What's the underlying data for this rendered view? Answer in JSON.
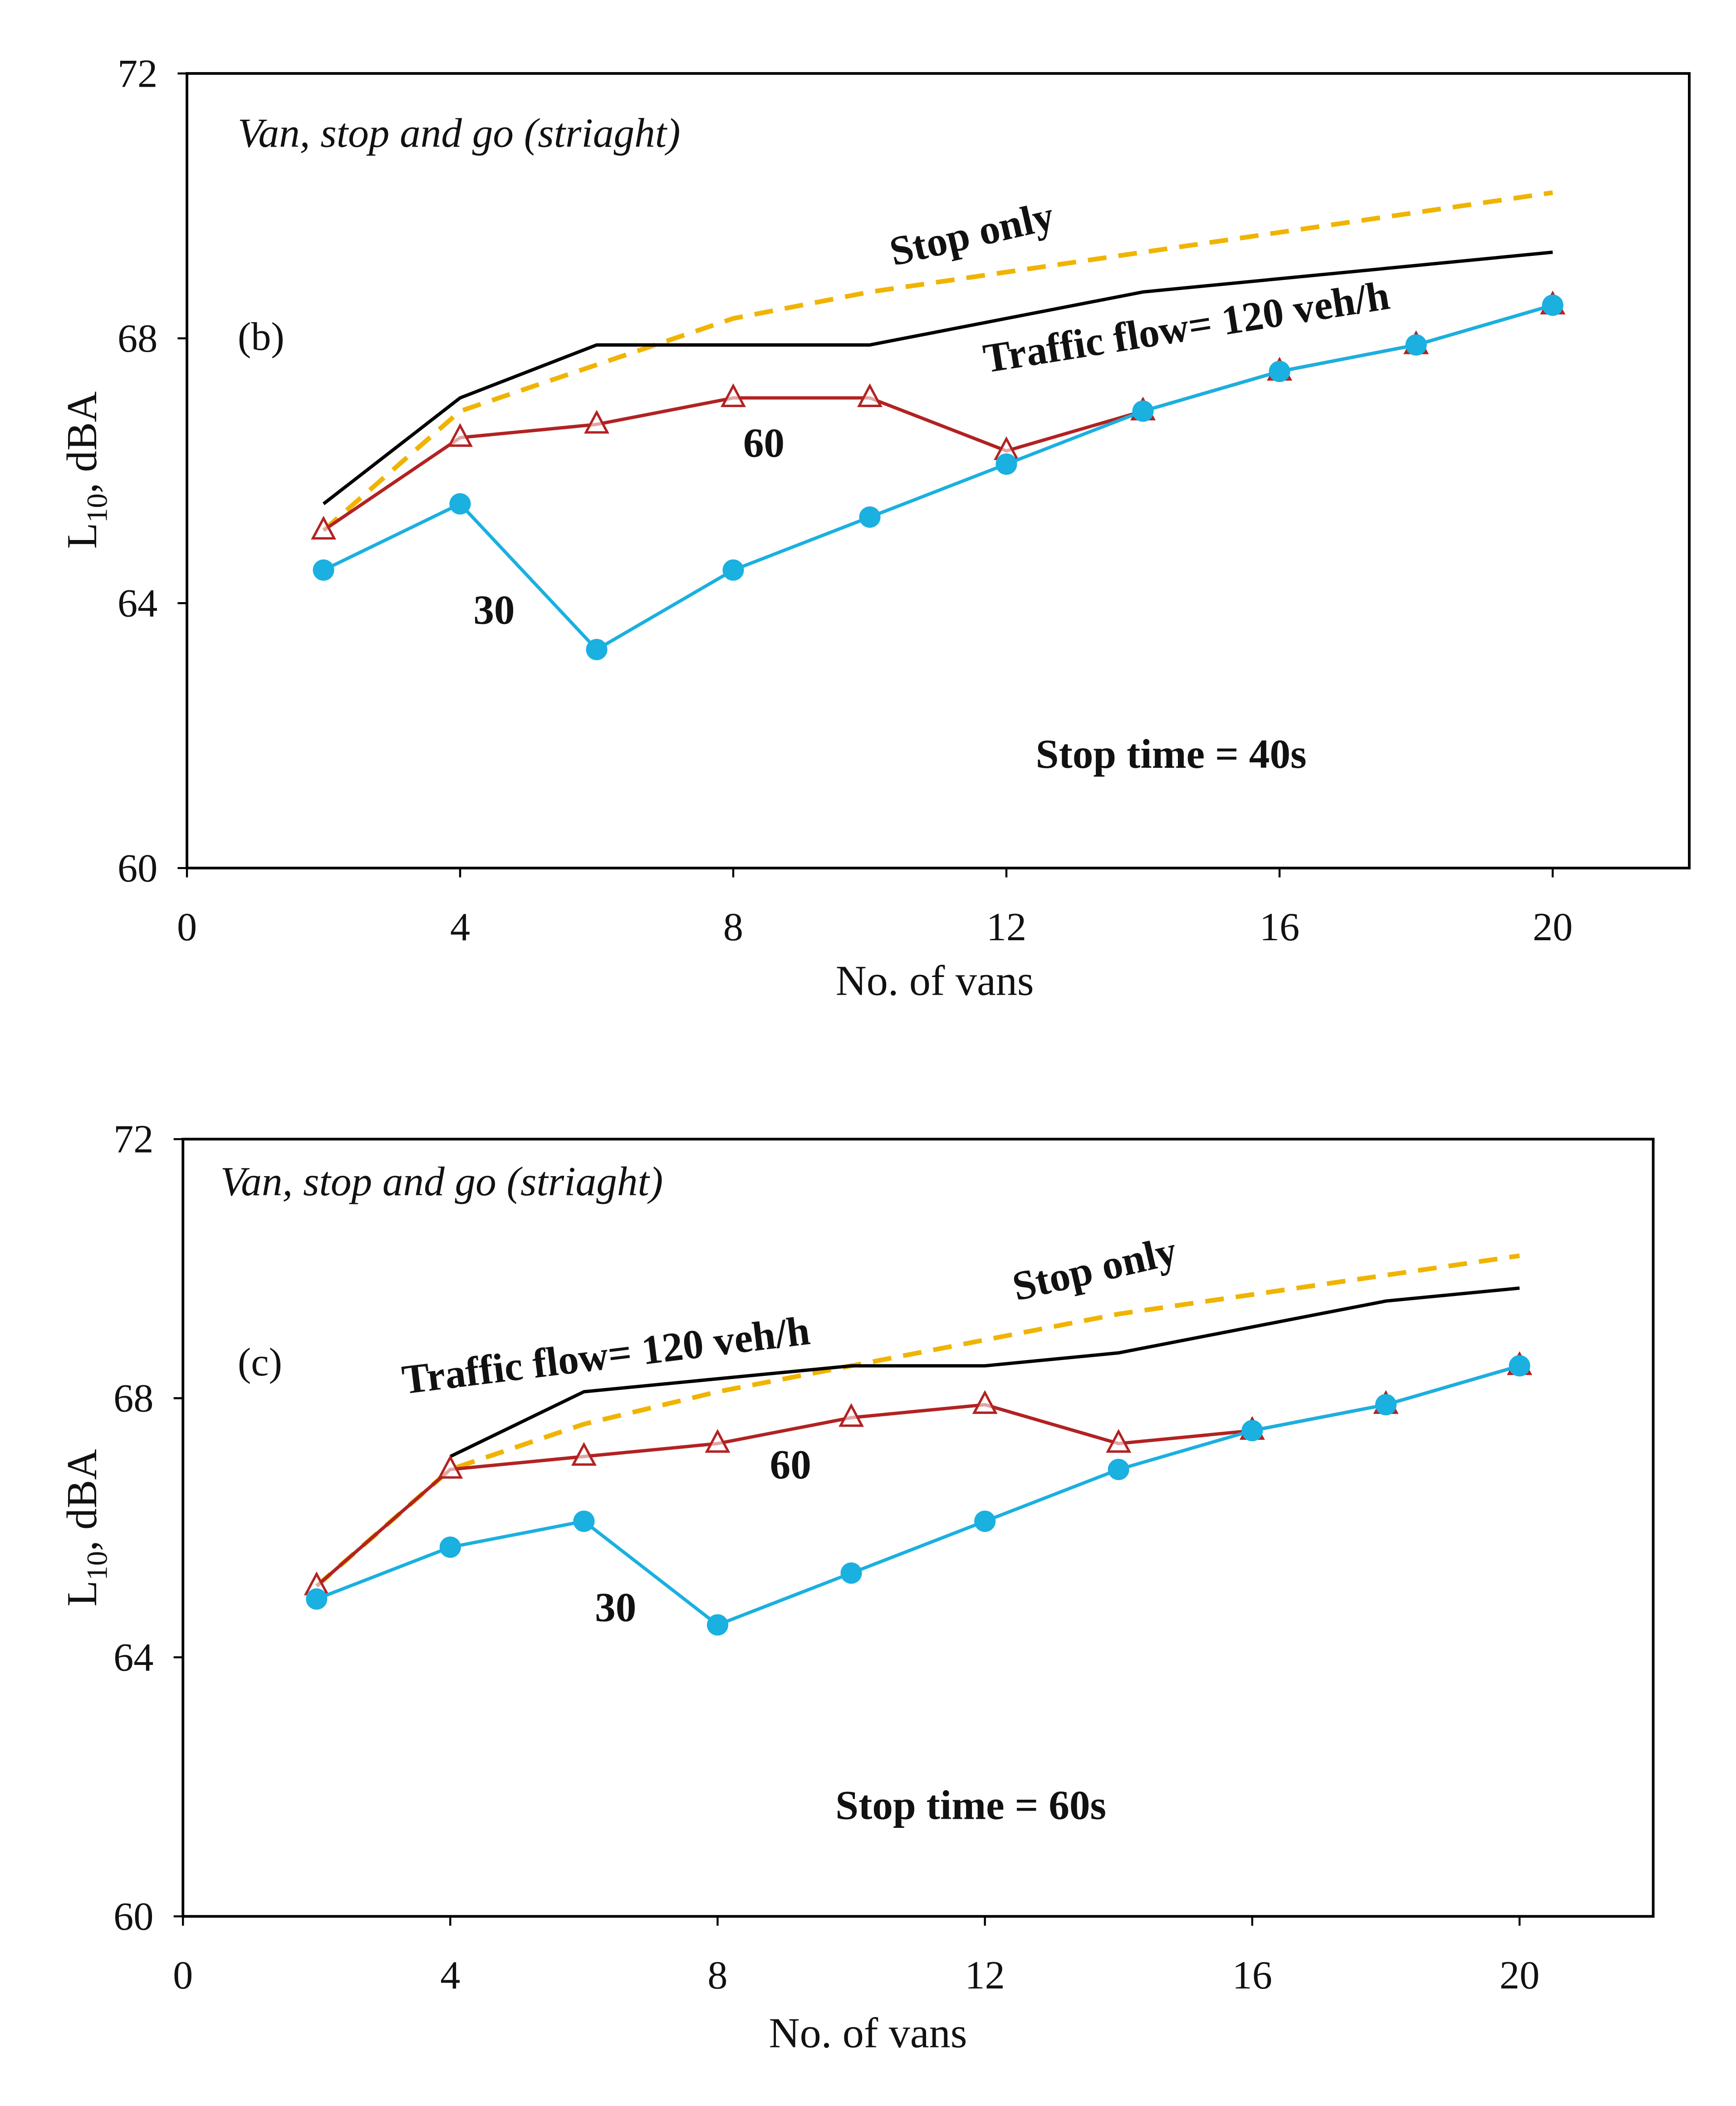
{
  "chart_data": [
    {
      "type": "line",
      "panel_label": "(b)",
      "title": "Van, stop and go (striaght)",
      "xlabel": "No. of vans",
      "ylabel_main": "L",
      "ylabel_sub": "10",
      "ylabel_rest": ", dBA",
      "xlim": [
        0,
        22
      ],
      "ylim": [
        60,
        72
      ],
      "xticks": [
        0,
        4,
        8,
        12,
        16,
        20
      ],
      "yticks": [
        60,
        64,
        68,
        72
      ],
      "grid": false,
      "x": [
        2,
        4,
        6,
        8,
        10,
        12,
        14,
        16,
        18,
        20
      ],
      "series": [
        {
          "name": "Stop only",
          "color": "#f0b400",
          "style": "dashed",
          "marker": "none",
          "values": [
            65.1,
            66.9,
            67.6,
            68.3,
            68.7,
            69.0,
            69.3,
            69.6,
            69.9,
            70.2
          ]
        },
        {
          "name": "Traffic flow= 120 veh/h",
          "color": "#000000",
          "style": "solid",
          "marker": "none",
          "values": [
            65.5,
            67.1,
            67.9,
            67.9,
            67.9,
            68.3,
            68.7,
            68.9,
            69.1,
            69.3
          ]
        },
        {
          "name": "60",
          "color": "#b22222",
          "style": "solid",
          "marker": "triangle",
          "values": [
            65.1,
            66.5,
            66.7,
            67.1,
            67.1,
            66.3,
            66.9,
            67.5,
            67.9,
            68.5
          ]
        },
        {
          "name": "30",
          "color": "#1ab0e0",
          "style": "solid",
          "marker": "circle",
          "values": [
            64.5,
            65.5,
            63.3,
            64.5,
            65.3,
            66.1,
            66.9,
            67.5,
            67.9,
            68.5
          ]
        }
      ],
      "annotations": [
        "Stop only",
        "Traffic flow= 120 veh/h",
        "60",
        "30",
        "Stop time = 40s"
      ]
    },
    {
      "type": "line",
      "panel_label": "(c)",
      "title": "Van, stop and go (striaght)",
      "xlabel": "No. of vans",
      "ylabel_main": "L",
      "ylabel_sub": "10",
      "ylabel_rest": ", dBA",
      "xlim": [
        0,
        22
      ],
      "ylim": [
        60,
        72
      ],
      "xticks": [
        0,
        4,
        8,
        12,
        16,
        20
      ],
      "yticks": [
        60,
        64,
        68,
        72
      ],
      "grid": false,
      "x": [
        2,
        4,
        6,
        8,
        10,
        12,
        14,
        16,
        18,
        20
      ],
      "series": [
        {
          "name": "Stop only",
          "color": "#f0b400",
          "style": "dashed",
          "marker": "none",
          "values": [
            65.1,
            66.9,
            67.6,
            68.1,
            68.5,
            68.9,
            69.3,
            69.6,
            69.9,
            70.2
          ]
        },
        {
          "name": "Traffic flow= 120 veh/h",
          "color": "#000000",
          "style": "solid",
          "marker": "none",
          "values": [
            null,
            67.1,
            68.1,
            68.3,
            68.5,
            68.5,
            68.7,
            69.1,
            69.5,
            69.7
          ]
        },
        {
          "name": "60",
          "color": "#b22222",
          "style": "solid",
          "marker": "triangle",
          "values": [
            65.1,
            66.9,
            67.1,
            67.3,
            67.7,
            67.9,
            67.3,
            67.5,
            67.9,
            68.5
          ]
        },
        {
          "name": "30",
          "color": "#1ab0e0",
          "style": "solid",
          "marker": "circle",
          "values": [
            64.9,
            65.7,
            66.1,
            64.5,
            65.3,
            66.1,
            66.9,
            67.5,
            67.9,
            68.5
          ]
        }
      ],
      "annotations": [
        "Stop only",
        "Traffic flow= 120 veh/h",
        "60",
        "30",
        "Stop time = 60s"
      ]
    }
  ]
}
